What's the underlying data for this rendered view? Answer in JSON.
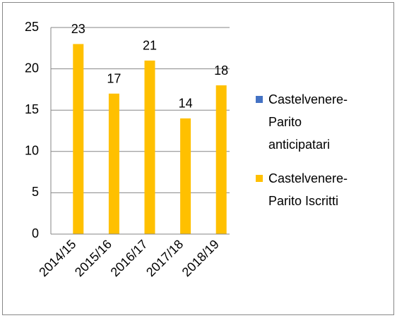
{
  "chart_data": {
    "type": "bar",
    "categories": [
      "2014/15",
      "2015/16",
      "2016/17",
      "2017/18",
      "2018/19"
    ],
    "series": [
      {
        "name": "Castelvenere-Parito anticipatari",
        "color": "#4472c4",
        "values": [
          0,
          0,
          0,
          0,
          0
        ]
      },
      {
        "name": "Castelvenere-Parito Iscritti",
        "color": "#ffc000",
        "values": [
          23,
          17,
          21,
          14,
          18
        ]
      }
    ],
    "ylim": [
      0,
      25
    ],
    "yticks": [
      0,
      5,
      10,
      15,
      20,
      25
    ],
    "grid": true,
    "legend": "right"
  }
}
